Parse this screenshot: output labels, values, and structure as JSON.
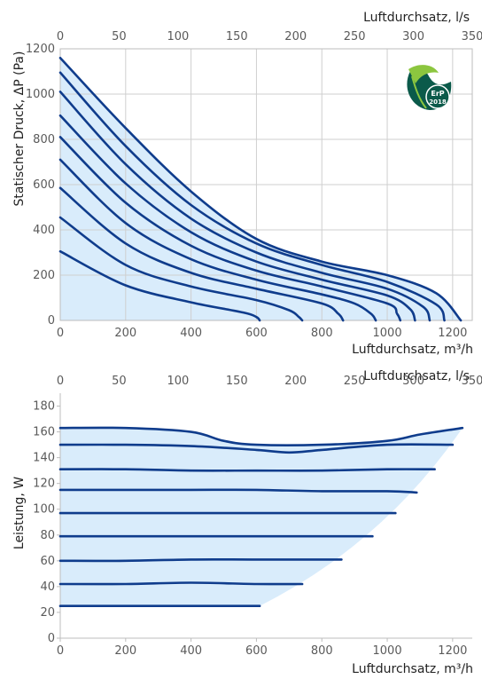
{
  "colors": {
    "curve": "#0f3c8c",
    "fill": "#d9ecfb",
    "grid": "#cfcfcf",
    "badge_dark": "#0b5a4a",
    "badge_light": "#8cc63f"
  },
  "badge": {
    "icon": "erp-leaf-badge",
    "label": "ErP",
    "year": "2018"
  },
  "chart_data": [
    {
      "type": "line",
      "title": "",
      "xlabel": "Luftdurchsatz, m³/h",
      "x2label": "Luftdurchsatz, l/s",
      "ylabel": "Statischer Druck, ΔP (Pa)",
      "xlim": [
        0,
        1260
      ],
      "x2lim": [
        0,
        350
      ],
      "ylim": [
        0,
        1200
      ],
      "xticks": [
        0,
        200,
        400,
        600,
        800,
        1000,
        1200
      ],
      "x2ticks": [
        0,
        50,
        100,
        150,
        200,
        250,
        300,
        350
      ],
      "yticks": [
        0,
        200,
        400,
        600,
        800,
        1000,
        1200
      ],
      "grid": true,
      "series": [
        {
          "x": [
            0,
            200,
            400,
            560,
            600,
            610
          ],
          "y": [
            305,
            155,
            80,
            35,
            15,
            0
          ]
        },
        {
          "x": [
            0,
            200,
            400,
            600,
            700,
            730,
            740
          ],
          "y": [
            455,
            245,
            150,
            90,
            45,
            15,
            0
          ]
        },
        {
          "x": [
            0,
            200,
            400,
            600,
            800,
            850,
            865
          ],
          "y": [
            585,
            340,
            210,
            140,
            75,
            30,
            0
          ]
        },
        {
          "x": [
            0,
            200,
            400,
            600,
            800,
            900,
            950,
            965
          ],
          "y": [
            710,
            430,
            270,
            180,
            115,
            75,
            30,
            0
          ]
        },
        {
          "x": [
            0,
            200,
            400,
            600,
            800,
            1000,
            1030,
            1040
          ],
          "y": [
            810,
            520,
            330,
            220,
            150,
            75,
            30,
            0
          ]
        },
        {
          "x": [
            0,
            200,
            400,
            600,
            800,
            1000,
            1070,
            1085
          ],
          "y": [
            905,
            605,
            390,
            260,
            180,
            110,
            50,
            0
          ]
        },
        {
          "x": [
            0,
            200,
            400,
            600,
            800,
            1000,
            1110,
            1130
          ],
          "y": [
            1010,
            690,
            450,
            300,
            210,
            140,
            60,
            0
          ]
        },
        {
          "x": [
            0,
            200,
            400,
            600,
            800,
            1000,
            1150,
            1175
          ],
          "y": [
            1095,
            770,
            510,
            340,
            245,
            170,
            70,
            0
          ]
        },
        {
          "x": [
            0,
            200,
            400,
            600,
            800,
            1000,
            1150,
            1225
          ],
          "y": [
            1160,
            850,
            570,
            360,
            260,
            200,
            120,
            0
          ]
        }
      ]
    },
    {
      "type": "line",
      "title": "",
      "xlabel": "Luftdurchsatz, m³/h",
      "x2label": "Luftdurchsatz, l/s",
      "ylabel": "Leistung, W",
      "xlim": [
        0,
        1260
      ],
      "x2lim": [
        0,
        350
      ],
      "ylim": [
        0,
        190
      ],
      "xticks": [
        0,
        200,
        400,
        600,
        800,
        1000,
        1200
      ],
      "x2ticks": [
        0,
        50,
        100,
        150,
        200,
        250,
        300,
        350
      ],
      "yticks": [
        0,
        20,
        40,
        60,
        80,
        100,
        120,
        140,
        160,
        180
      ],
      "grid": false,
      "series": [
        {
          "x": [
            0,
            200,
            400,
            610
          ],
          "y": [
            25,
            25,
            25,
            25
          ]
        },
        {
          "x": [
            0,
            200,
            400,
            600,
            740
          ],
          "y": [
            42,
            42,
            43,
            42,
            42
          ]
        },
        {
          "x": [
            0,
            200,
            400,
            600,
            860
          ],
          "y": [
            60,
            60,
            61,
            61,
            61
          ]
        },
        {
          "x": [
            0,
            200,
            400,
            600,
            800,
            955
          ],
          "y": [
            79,
            79,
            79,
            79,
            79,
            79
          ]
        },
        {
          "x": [
            0,
            200,
            400,
            600,
            800,
            1025
          ],
          "y": [
            97,
            97,
            97,
            97,
            97,
            97
          ]
        },
        {
          "x": [
            0,
            200,
            400,
            600,
            800,
            1000,
            1090
          ],
          "y": [
            115,
            115,
            115,
            115,
            114,
            114,
            113
          ]
        },
        {
          "x": [
            0,
            200,
            400,
            600,
            800,
            1000,
            1145
          ],
          "y": [
            131,
            131,
            130,
            130,
            130,
            131,
            131
          ]
        },
        {
          "x": [
            0,
            200,
            400,
            600,
            700,
            800,
            1000,
            1200
          ],
          "y": [
            150,
            150,
            149,
            146,
            144,
            146,
            150,
            150
          ]
        },
        {
          "x": [
            0,
            200,
            400,
            500,
            600,
            800,
            1000,
            1100,
            1230
          ],
          "y": [
            163,
            163,
            160,
            153,
            150,
            150,
            153,
            158,
            163
          ]
        }
      ]
    }
  ]
}
